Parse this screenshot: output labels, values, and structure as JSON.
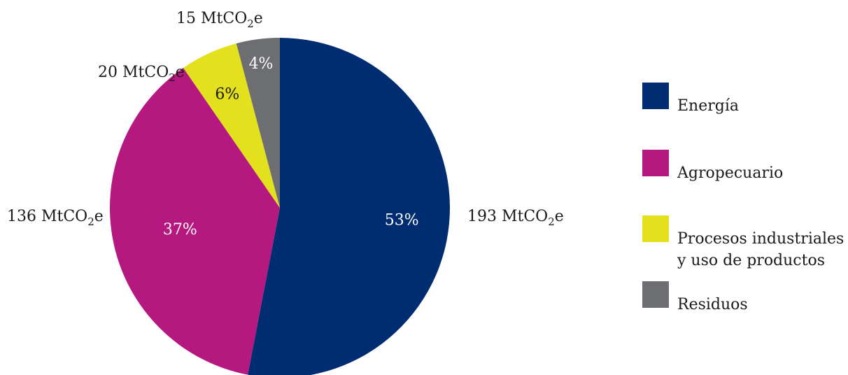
{
  "chart_data": {
    "type": "pie",
    "start_angle_deg": 0,
    "direction": "clockwise",
    "slices": [
      {
        "label": "Energía",
        "value": 193,
        "value_label": "193 MtCO",
        "percent": "53%",
        "color": "#002D72"
      },
      {
        "label": "Agropecuario",
        "value": 136,
        "value_label": "136 MtCO",
        "percent": "37%",
        "color": "#B5187F"
      },
      {
        "label": "Procesos industriales\ny uso de productos",
        "value": 20,
        "value_label": "20 MtCO",
        "percent": "6%",
        "color": "#E3E01E"
      },
      {
        "label": "Residuos",
        "value": 15,
        "value_label": "15 MtCO",
        "percent": "4%",
        "color": "#6D6E71"
      }
    ],
    "unit_subscript": "2",
    "unit_suffix": "e",
    "legend_position": "right"
  }
}
